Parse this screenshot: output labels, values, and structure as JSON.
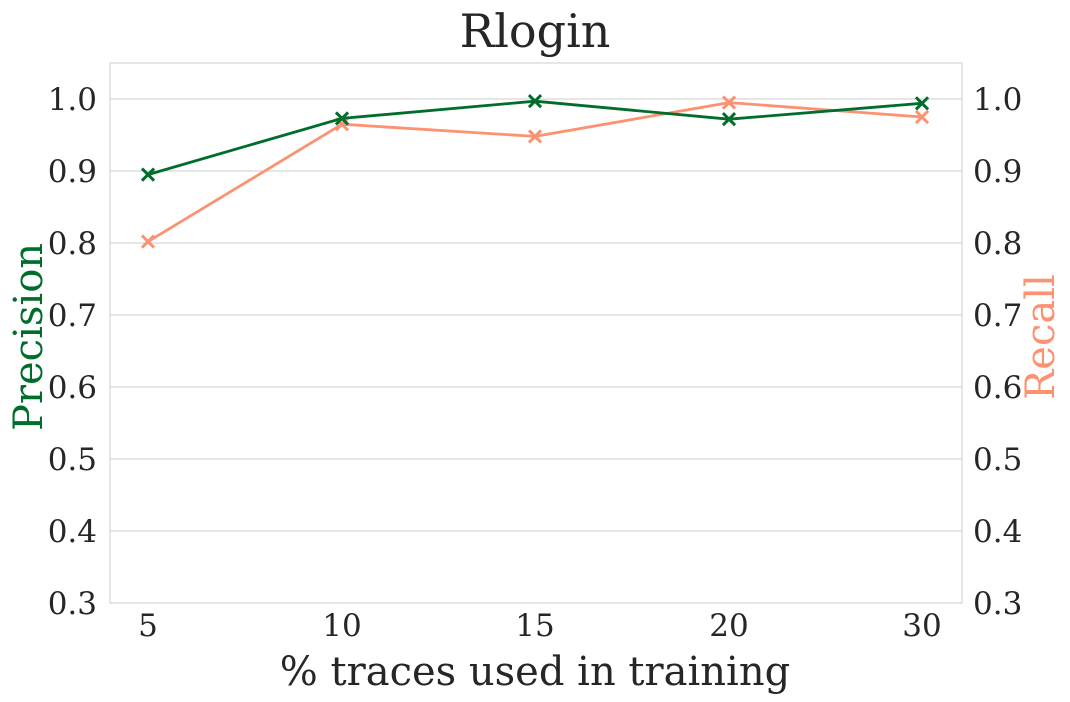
{
  "chart_data": {
    "type": "line",
    "title": "Rlogin",
    "xlabel": "% traces used in training",
    "ylabel_left": "Precision",
    "ylabel_right": "Recall",
    "categories": [
      "5",
      "10",
      "15",
      "20",
      "30"
    ],
    "ylim": [
      0.3,
      1.05
    ],
    "yticks": [
      "0.3",
      "0.4",
      "0.5",
      "0.6",
      "0.7",
      "0.8",
      "0.9",
      "1.0"
    ],
    "grid": "horizontal",
    "series": [
      {
        "name": "Precision",
        "axis": "left",
        "color": "#006d2c",
        "values": [
          0.895,
          0.973,
          0.997,
          0.972,
          0.994
        ]
      },
      {
        "name": "Recall",
        "axis": "right",
        "color": "#fc9272",
        "values": [
          0.802,
          0.965,
          0.948,
          0.995,
          0.975
        ]
      }
    ]
  }
}
